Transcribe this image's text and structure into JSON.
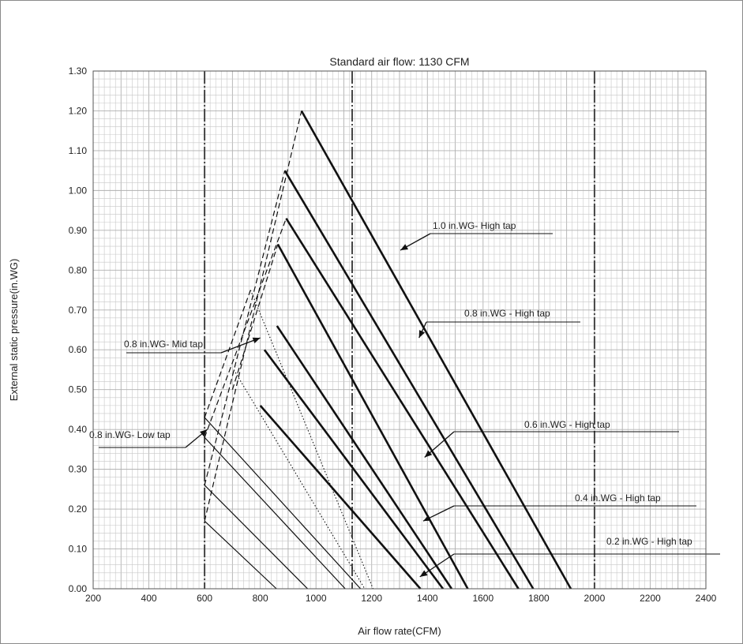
{
  "chart_data": {
    "type": "line",
    "title": "Standard air flow: 1130 CFM",
    "xlabel": "Air flow rate(CFM)",
    "ylabel": "External static pressure(in.WG)",
    "xlim": [
      200,
      2400
    ],
    "ylim": [
      0,
      1.3
    ],
    "xticks": [
      "200",
      "400",
      "600",
      "800",
      "1000",
      "1200",
      "1400",
      "1600",
      "1800",
      "2000",
      "2200",
      "2400"
    ],
    "yticks": [
      "0.00",
      "0.10",
      "0.20",
      "0.30",
      "0.40",
      "0.50",
      "0.60",
      "0.70",
      "0.80",
      "0.90",
      "1.00",
      "1.10",
      "1.20",
      "1.30"
    ],
    "grid": true,
    "reference_lines_x": [
      600,
      1130,
      2000
    ],
    "curves": [
      {
        "group": "1.0 in.WG- High tap",
        "style": "thick",
        "points": [
          [
            948,
            1.2
          ],
          [
            1915,
            0
          ]
        ]
      },
      {
        "group": "0.8 in.WG - High tap",
        "style": "thick",
        "points": [
          [
            888,
            1.05
          ],
          [
            1780,
            0
          ]
        ]
      },
      {
        "group": "0.8 in.WG - High tap",
        "style": "thick",
        "points": [
          [
            893,
            0.93
          ],
          [
            1727,
            0
          ]
        ]
      },
      {
        "group": "0.6 in.WG - High tap",
        "style": "thick",
        "points": [
          [
            863,
            0.865
          ],
          [
            1545,
            0
          ]
        ]
      },
      {
        "group": "0.6 in.WG - High tap",
        "style": "thick",
        "points": [
          [
            860,
            0.66
          ],
          [
            1487,
            0
          ]
        ]
      },
      {
        "group": "0.4 in.WG - High tap",
        "style": "thick",
        "points": [
          [
            815,
            0.6
          ],
          [
            1456,
            0
          ]
        ]
      },
      {
        "group": "0.2 in.WG - High tap",
        "style": "thick",
        "points": [
          [
            800,
            0.46
          ],
          [
            1375,
            0
          ]
        ]
      },
      {
        "group": "0.8 in.WG- Mid tap",
        "style": "thin",
        "points": [
          [
            600,
            0.43
          ],
          [
            1160,
            0
          ]
        ]
      },
      {
        "group": "0.8 in.WG- Mid tap",
        "style": "thin",
        "points": [
          [
            600,
            0.38
          ],
          [
            1105,
            0
          ]
        ]
      },
      {
        "group": "0.8 in.WG- Low tap",
        "style": "thin",
        "points": [
          [
            600,
            0.26
          ],
          [
            970,
            0
          ]
        ]
      },
      {
        "group": "0.8 in.WG- Low tap",
        "style": "thin",
        "points": [
          [
            600,
            0.17
          ],
          [
            858,
            0
          ]
        ]
      },
      {
        "group": "",
        "style": "dotted",
        "points": [
          [
            765,
            0.75
          ],
          [
            1205,
            0
          ]
        ]
      },
      {
        "group": "",
        "style": "dotted",
        "points": [
          [
            705,
            0.55
          ],
          [
            1175,
            0
          ]
        ]
      },
      {
        "group": "",
        "style": "dashed",
        "points": [
          [
            600,
            0.17
          ],
          [
            948,
            1.2
          ]
        ]
      },
      {
        "group": "",
        "style": "dashed",
        "points": [
          [
            600,
            0.26
          ],
          [
            888,
            1.05
          ]
        ]
      },
      {
        "group": "",
        "style": "dashed",
        "points": [
          [
            600,
            0.38
          ],
          [
            893,
            0.93
          ]
        ]
      },
      {
        "group": "",
        "style": "dashed",
        "points": [
          [
            600,
            0.43
          ],
          [
            765,
            0.75
          ]
        ]
      },
      {
        "group": "",
        "style": "dashed",
        "points": [
          [
            700,
            0.5
          ],
          [
            863,
            0.865
          ]
        ]
      }
    ],
    "annotations": [
      {
        "text": "1.0 in.WG- High tap",
        "arrow_to": [
          1303,
          0.85
        ]
      },
      {
        "text": "0.8 in.WG - High tap",
        "arrow_to": [
          1370,
          0.63
        ]
      },
      {
        "text": "0.6 in.WG  - High tap",
        "arrow_to": [
          1390,
          0.33
        ]
      },
      {
        "text": "0.4 in.WG - High tap",
        "arrow_to": [
          1385,
          0.17
        ]
      },
      {
        "text": "0.2 in.WG - High tap",
        "arrow_to": [
          1373,
          0.03
        ]
      },
      {
        "text": "0.8 in.WG- Mid tap",
        "arrow_to": [
          800,
          0.63
        ]
      },
      {
        "text": "0.8 in.WG- Low tap",
        "arrow_to": [
          610,
          0.4
        ]
      }
    ]
  }
}
